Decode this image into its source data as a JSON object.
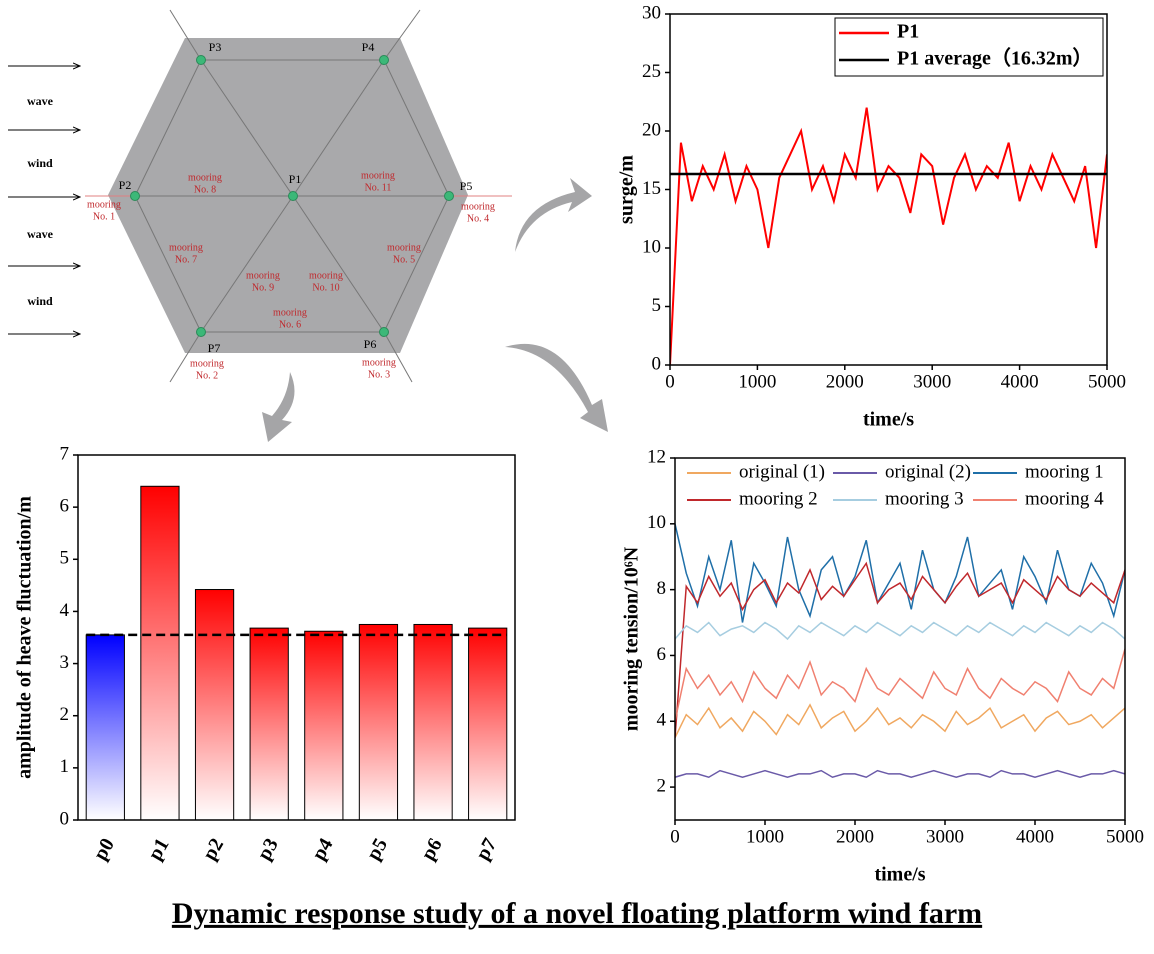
{
  "title": "Dynamic response study of a novel floating platform wind farm",
  "diagram": {
    "points": [
      "P1",
      "P2",
      "P3",
      "P4",
      "P5",
      "P6",
      "P7"
    ],
    "moorings": [
      [
        "mooring",
        "No. 1"
      ],
      [
        "mooring",
        "No. 2"
      ],
      [
        "mooring",
        "No. 3"
      ],
      [
        "mooring",
        "No. 4"
      ],
      [
        "mooring",
        "No. 5"
      ],
      [
        "mooring",
        "No. 6"
      ],
      [
        "mooring",
        "No. 7"
      ],
      [
        "mooring",
        "No. 8"
      ],
      [
        "mooring",
        "No. 9"
      ],
      [
        "mooring",
        "No. 10"
      ],
      [
        "mooring",
        "No. 11"
      ]
    ],
    "flows": [
      "wave",
      "wind",
      "wave",
      "wind"
    ]
  },
  "chart_data": [
    {
      "type": "line",
      "xlabel": "time/s",
      "ylabel": "surge/m",
      "x": [
        0,
        125,
        250,
        375,
        500,
        625,
        750,
        875,
        1000,
        1125,
        1250,
        1375,
        1500,
        1625,
        1750,
        1875,
        2000,
        2125,
        2250,
        2375,
        2500,
        2625,
        2750,
        2875,
        3000,
        3125,
        3250,
        3375,
        3500,
        3625,
        3750,
        3875,
        4000,
        4125,
        4250,
        4375,
        4500,
        4625,
        4750,
        4875,
        5000
      ],
      "series": [
        {
          "name": "P1",
          "color": "#ff0000",
          "values": [
            0,
            19,
            14,
            17,
            15,
            18,
            14,
            17,
            15,
            10,
            16,
            18,
            20,
            15,
            17,
            14,
            18,
            16,
            22,
            15,
            17,
            16,
            13,
            18,
            17,
            12,
            16,
            18,
            15,
            17,
            16,
            19,
            14,
            17,
            15,
            18,
            16,
            14,
            17,
            10,
            18
          ]
        }
      ],
      "reference_lines": [
        {
          "name": "P1 average（16.32m）",
          "color": "#000000",
          "value": 16.32
        }
      ],
      "xlim": [
        0,
        5000
      ],
      "xticks": [
        0,
        1000,
        2000,
        3000,
        4000,
        5000
      ],
      "ylim": [
        0,
        30
      ],
      "yticks": [
        0,
        5,
        10,
        15,
        20,
        25,
        30
      ],
      "legend": "top-right"
    },
    {
      "type": "bar",
      "ylabel": "amplitude of heave fluctuation/m",
      "categories": [
        "p0",
        "p1",
        "p2",
        "p3",
        "p4",
        "p5",
        "p6",
        "p7"
      ],
      "values": [
        3.55,
        6.4,
        4.42,
        3.68,
        3.62,
        3.75,
        3.75,
        3.68
      ],
      "colors": [
        "#0000ff",
        "#ff0000",
        "#ff0000",
        "#ff0000",
        "#ff0000",
        "#ff0000",
        "#ff0000",
        "#ff0000"
      ],
      "reference_lines": [
        {
          "value": 3.55,
          "color": "#000000"
        }
      ],
      "ylim": [
        0,
        7
      ],
      "yticks": [
        0,
        1,
        2,
        3,
        4,
        5,
        6,
        7
      ]
    },
    {
      "type": "line",
      "xlabel": "time/s",
      "ylabel": "mooring tension/10⁶N",
      "x": [
        0,
        125,
        250,
        375,
        500,
        625,
        750,
        875,
        1000,
        1125,
        1250,
        1375,
        1500,
        1625,
        1750,
        1875,
        2000,
        2125,
        2250,
        2375,
        2500,
        2625,
        2750,
        2875,
        3000,
        3125,
        3250,
        3375,
        3500,
        3625,
        3750,
        3875,
        4000,
        4125,
        4250,
        4375,
        4500,
        4625,
        4750,
        4875,
        5000
      ],
      "series": [
        {
          "name": "original (1)",
          "color": "#f0a860",
          "values": [
            3.5,
            4.2,
            3.9,
            4.4,
            3.8,
            4.1,
            3.7,
            4.3,
            4.0,
            3.6,
            4.2,
            3.9,
            4.5,
            3.8,
            4.1,
            4.3,
            3.7,
            4.0,
            4.4,
            3.9,
            4.1,
            3.8,
            4.2,
            4.0,
            3.7,
            4.3,
            3.9,
            4.1,
            4.4,
            3.8,
            4.0,
            4.2,
            3.7,
            4.1,
            4.3,
            3.9,
            4.0,
            4.2,
            3.8,
            4.1,
            4.4
          ]
        },
        {
          "name": "original (2)",
          "color": "#6a5aa8",
          "values": [
            2.3,
            2.4,
            2.4,
            2.3,
            2.5,
            2.4,
            2.3,
            2.4,
            2.5,
            2.4,
            2.3,
            2.4,
            2.4,
            2.5,
            2.3,
            2.4,
            2.4,
            2.3,
            2.5,
            2.4,
            2.4,
            2.3,
            2.4,
            2.5,
            2.4,
            2.3,
            2.4,
            2.4,
            2.3,
            2.5,
            2.4,
            2.4,
            2.3,
            2.4,
            2.5,
            2.4,
            2.3,
            2.4,
            2.4,
            2.5,
            2.4
          ]
        },
        {
          "name": "mooring 1",
          "color": "#1f6fa8",
          "values": [
            10,
            8.5,
            7.5,
            9,
            8,
            9.5,
            7,
            8.8,
            8.2,
            7.5,
            9.6,
            8,
            7.2,
            8.6,
            9,
            7.8,
            8.4,
            9.5,
            7.6,
            8.2,
            8.8,
            7.4,
            9.2,
            8,
            7.6,
            8.4,
            9.6,
            7.8,
            8.2,
            8.6,
            7.4,
            9,
            8.4,
            7.6,
            9.2,
            8,
            7.8,
            8.8,
            8.2,
            7.2,
            8.6
          ]
        },
        {
          "name": "mooring 2",
          "color": "#c0282c",
          "values": [
            3.5,
            8.1,
            7.6,
            8.4,
            7.8,
            8.2,
            7.4,
            8,
            8.3,
            7.6,
            8.2,
            7.9,
            8.6,
            7.7,
            8.1,
            7.8,
            8.3,
            8.8,
            7.6,
            8,
            8.2,
            7.7,
            8.4,
            8,
            7.6,
            8.1,
            8.5,
            7.8,
            8,
            8.2,
            7.6,
            8.3,
            8,
            7.7,
            8.4,
            8,
            7.8,
            8.2,
            7.9,
            7.6,
            8.6
          ]
        },
        {
          "name": "mooring 3",
          "color": "#a6cde0",
          "values": [
            6.5,
            6.9,
            6.7,
            7,
            6.6,
            6.8,
            6.9,
            6.7,
            7,
            6.8,
            6.5,
            6.9,
            6.7,
            7,
            6.8,
            6.6,
            6.9,
            6.7,
            7,
            6.8,
            6.6,
            6.9,
            6.7,
            7,
            6.8,
            6.6,
            6.9,
            6.7,
            7,
            6.8,
            6.6,
            6.9,
            6.7,
            7,
            6.8,
            6.6,
            6.9,
            6.7,
            7,
            6.8,
            6.5
          ]
        },
        {
          "name": "mooring 4",
          "color": "#f08070",
          "values": [
            4,
            5.6,
            5,
            5.4,
            4.8,
            5.2,
            4.6,
            5.5,
            5,
            4.7,
            5.4,
            5,
            5.8,
            4.8,
            5.2,
            5,
            4.6,
            5.6,
            5,
            4.8,
            5.3,
            5,
            4.7,
            5.5,
            5,
            4.8,
            5.6,
            5,
            4.7,
            5.3,
            5,
            4.8,
            5.2,
            5,
            4.6,
            5.5,
            5,
            4.8,
            5.3,
            5,
            6.2
          ]
        }
      ],
      "xlim": [
        0,
        5000
      ],
      "xticks": [
        0,
        1000,
        2000,
        3000,
        4000,
        5000
      ],
      "ylim": [
        1,
        12
      ],
      "yticks": [
        2,
        4,
        6,
        8,
        10,
        12
      ],
      "legend": "top"
    }
  ]
}
